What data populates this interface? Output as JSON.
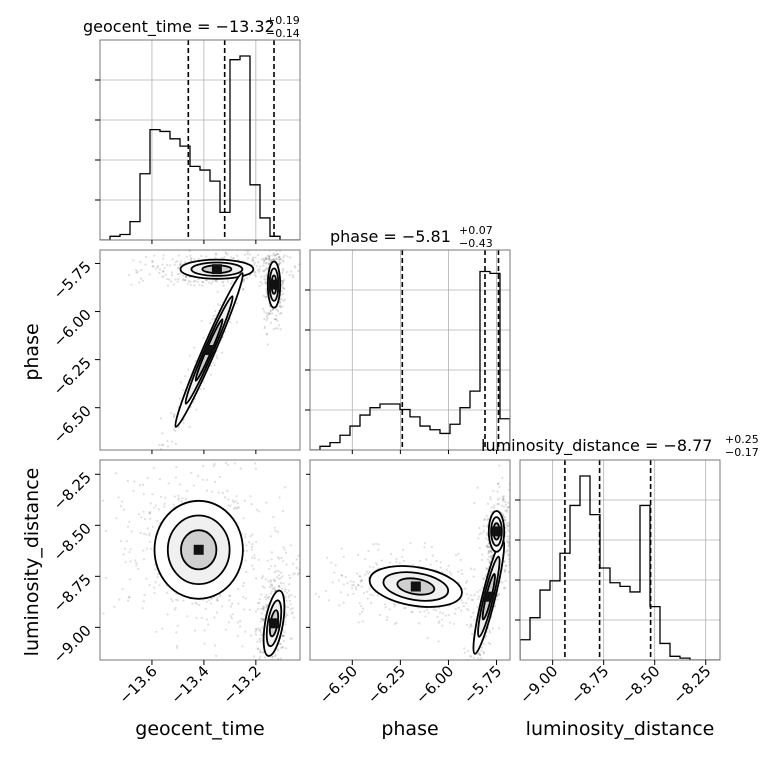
{
  "chart_data": {
    "type": "corner",
    "parameters": [
      "geocent_time",
      "phase",
      "luminosity_distance"
    ],
    "titles": [
      {
        "param": "geocent_time",
        "text": "geocent_time = −13.32",
        "plus": "+0.19",
        "minus": "−0.14"
      },
      {
        "param": "phase",
        "text": "phase = −5.81",
        "plus": "+0.07",
        "minus": "−0.43"
      },
      {
        "param": "luminosity_distance",
        "text": "luminosity_distance = −8.77",
        "plus": "+0.25",
        "minus": "−0.17"
      }
    ],
    "ranges": {
      "geocent_time": [
        -13.8,
        -13.03
      ],
      "phase": [
        -6.72,
        -5.68
      ],
      "luminosity_distance": [
        -9.16,
        -8.18
      ]
    },
    "ticks": {
      "geocent_time": {
        "values": [
          -13.6,
          -13.4,
          -13.2
        ],
        "labels": [
          "−13.6",
          "−13.4",
          "−13.2"
        ]
      },
      "phase": {
        "values": [
          -6.5,
          -6.25,
          -6.0,
          -5.75
        ],
        "labels": [
          "−6.50",
          "−6.25",
          "−6.00",
          "−5.75"
        ]
      },
      "luminosity_distance": {
        "values": [
          -9.0,
          -8.75,
          -8.5,
          -8.25
        ],
        "labels": [
          "−9.00",
          "−8.75",
          "−8.50",
          "−8.25"
        ]
      }
    },
    "quantiles": {
      "geocent_time": [
        -13.46,
        -13.32,
        -13.13
      ],
      "phase": [
        -6.24,
        -5.81,
        -5.74
      ],
      "luminosity_distance": [
        -8.94,
        -8.77,
        -8.52
      ]
    },
    "histograms": {
      "geocent_time": {
        "edges_range": [
          -13.8,
          -13.03
        ],
        "bins": 20,
        "counts": [
          0.0,
          0.02,
          0.03,
          0.1,
          0.36,
          0.6,
          0.59,
          0.55,
          0.51,
          0.4,
          0.38,
          0.32,
          0.15,
          0.98,
          1.0,
          0.3,
          0.12,
          0.02,
          0.0,
          0.0
        ]
      },
      "phase": {
        "edges_range": [
          -6.72,
          -5.68
        ],
        "bins": 20,
        "counts": [
          0.0,
          0.02,
          0.04,
          0.08,
          0.13,
          0.19,
          0.23,
          0.25,
          0.25,
          0.22,
          0.18,
          0.13,
          0.11,
          0.09,
          0.14,
          0.23,
          0.32,
          0.97,
          0.96,
          0.17
        ]
      },
      "luminosity_distance": {
        "edges_range": [
          -9.16,
          -8.18
        ],
        "bins": 20,
        "counts": [
          0.11,
          0.23,
          0.38,
          0.43,
          0.58,
          0.84,
          1.0,
          0.79,
          0.5,
          0.42,
          0.4,
          0.37,
          0.84,
          0.29,
          0.09,
          0.02,
          0.01,
          0.0,
          0.0,
          0.0
        ]
      }
    },
    "contour_modes": {
      "phase_vs_geocent_time": [
        {
          "x": -13.35,
          "y": -5.78,
          "sx": 0.07,
          "sy": 0.025,
          "rho": 0.0,
          "w": 1.0
        },
        {
          "x": -13.13,
          "y": -5.86,
          "sx": 0.012,
          "sy": 0.06,
          "rho": 0.0,
          "w": 0.9
        },
        {
          "x": -13.38,
          "y": -6.2,
          "sx": 0.065,
          "sy": 0.2,
          "rho": 0.98,
          "w": 0.7
        }
      ],
      "luminosity_distance_vs_geocent_time": [
        {
          "x": -13.42,
          "y": -8.62,
          "sx": 0.085,
          "sy": 0.12,
          "rho": 0.0,
          "w": 1.0
        },
        {
          "x": -13.13,
          "y": -8.98,
          "sx": 0.02,
          "sy": 0.08,
          "rho": 0.5,
          "w": 0.7
        }
      ],
      "luminosity_distance_vs_phase": [
        {
          "x": -6.17,
          "y": -8.8,
          "sx": 0.12,
          "sy": 0.05,
          "rho": -0.3,
          "w": 1.0
        },
        {
          "x": -5.79,
          "y": -8.85,
          "sx": 0.04,
          "sy": 0.14,
          "rho": 0.9,
          "w": 0.8
        },
        {
          "x": -5.75,
          "y": -8.53,
          "sx": 0.02,
          "sy": 0.05,
          "rho": 0.0,
          "w": 0.7
        }
      ]
    }
  }
}
